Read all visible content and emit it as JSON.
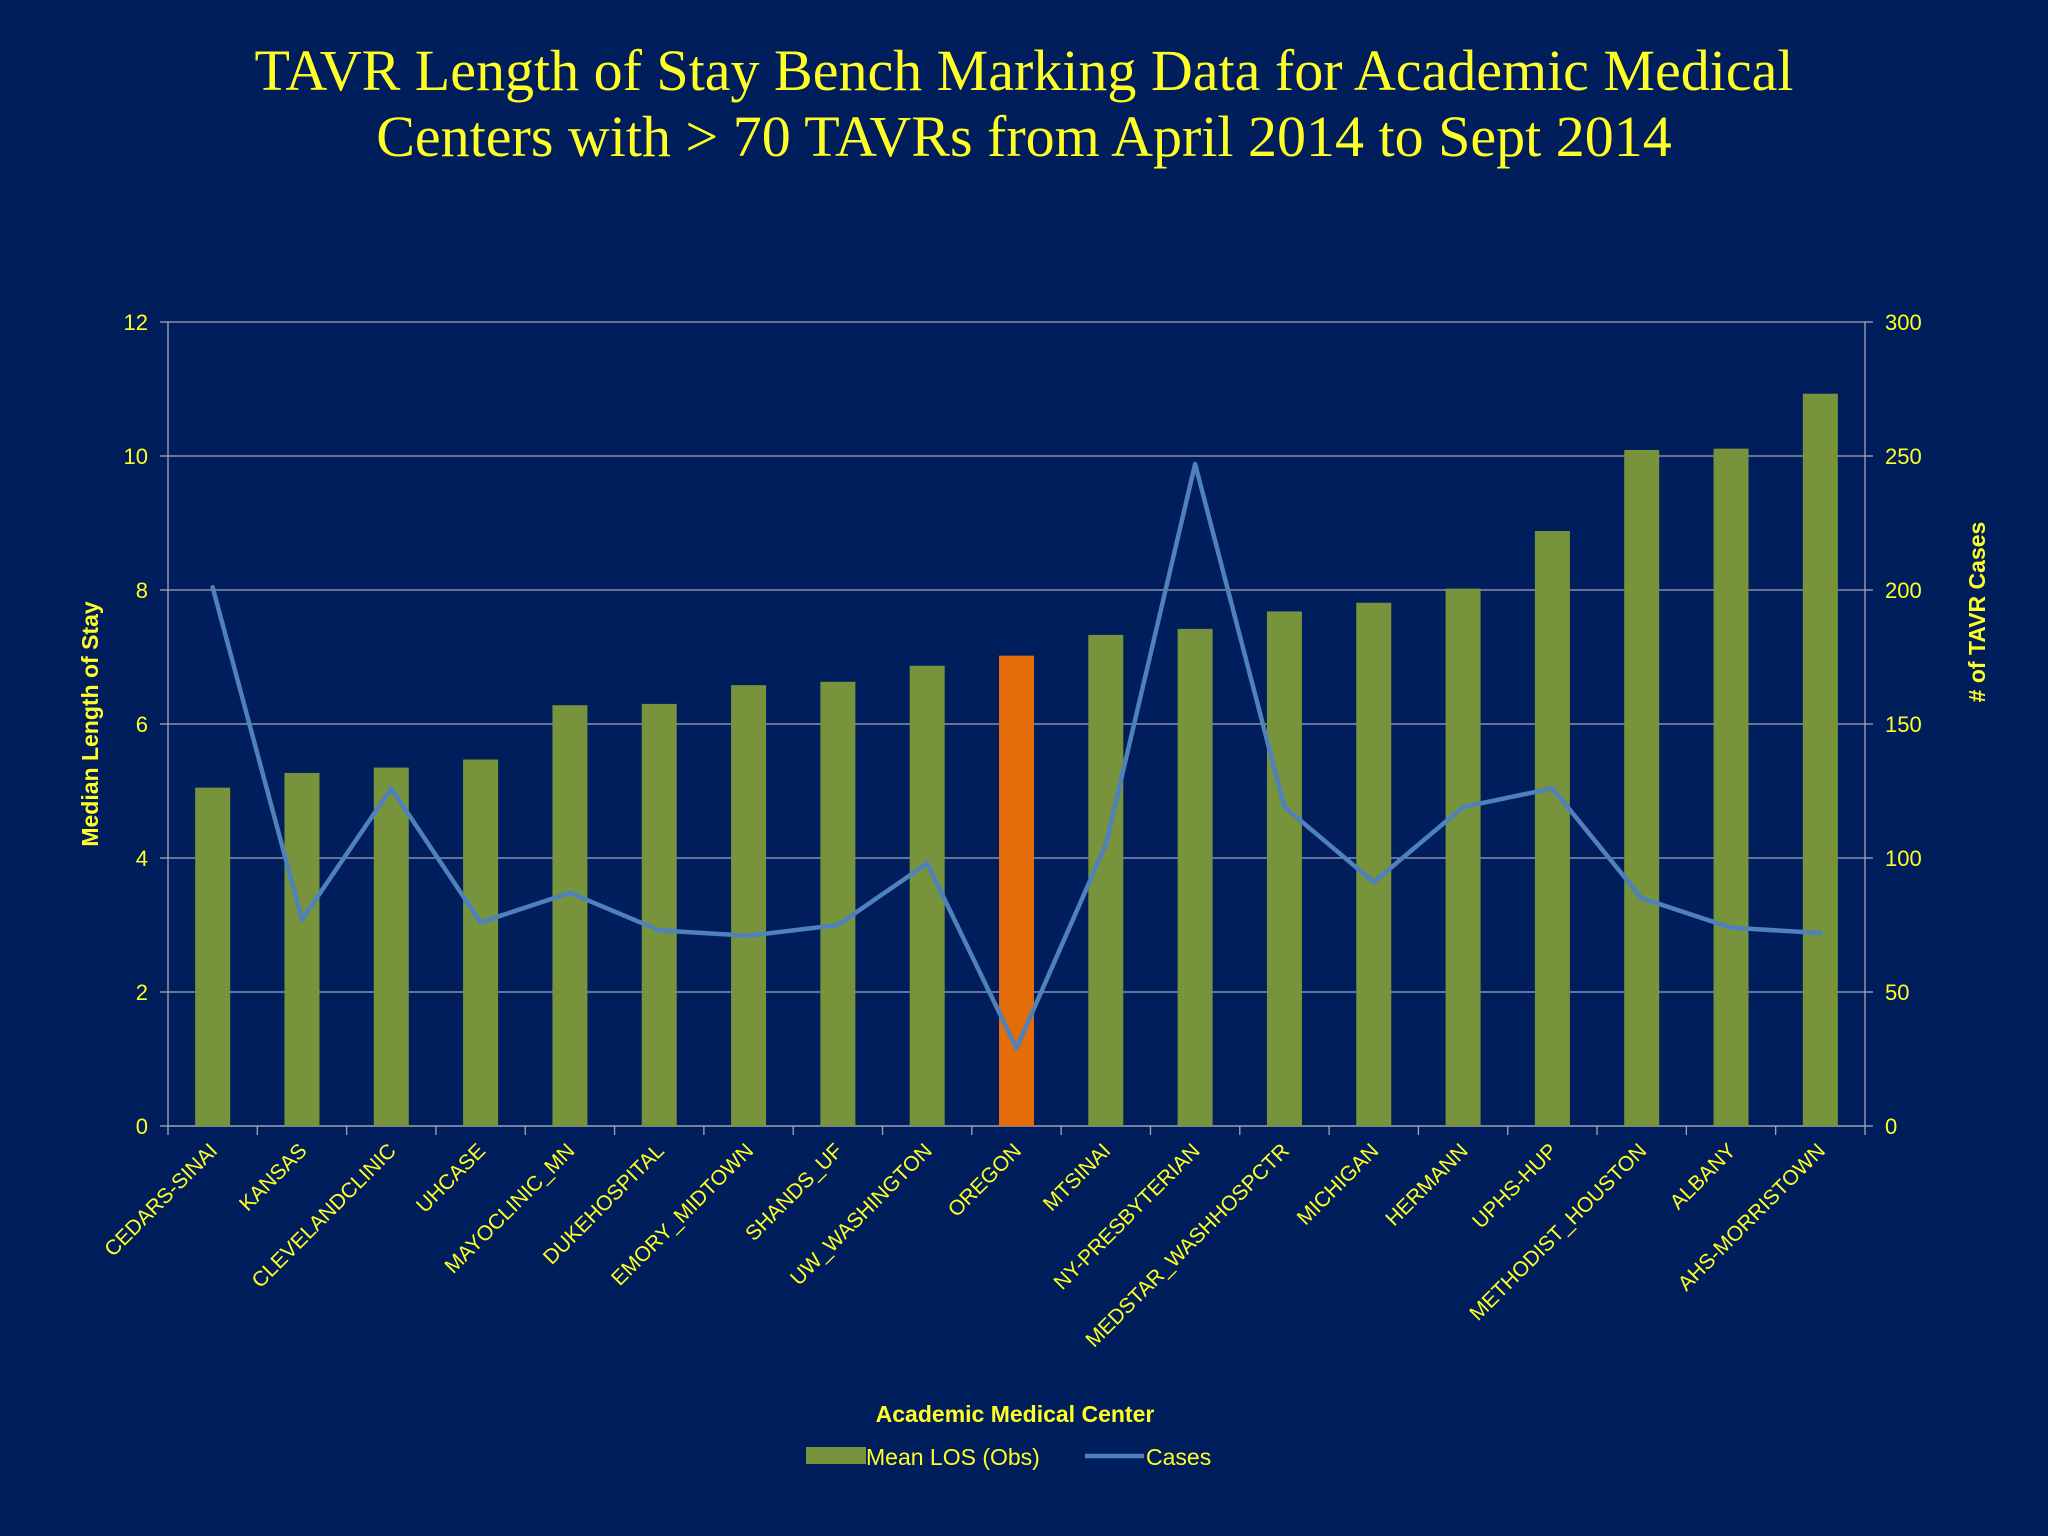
{
  "slide": {
    "title_line1": "TAVR Length of Stay Bench Marking Data for Academic Medical",
    "title_line2": "Centers with > 70 TAVRs from April 2014 to Sept 2014"
  },
  "colors": {
    "background": "#001d5c",
    "text": "#ffff26",
    "bar": "#77933c",
    "bar_highlight": "#e46c0a",
    "line": "#4f81bd",
    "grid": "#a6a6b8"
  },
  "chart_data": {
    "type": "bar",
    "xlabel": "Academic Medical Center",
    "ylabel": "Median Length of Stay",
    "y2label": "# of TAVR Cases",
    "ylim": [
      0,
      12
    ],
    "y2lim": [
      0,
      300
    ],
    "yticks": [
      0,
      2,
      4,
      6,
      8,
      10,
      12
    ],
    "y2ticks": [
      0,
      50,
      100,
      150,
      200,
      250,
      300
    ],
    "grid": true,
    "legend_position": "bottom",
    "highlight_category": "OREGON",
    "categories": [
      "CEDARS-SINAI",
      "KANSAS",
      "CLEVELANDCLINIC",
      "UHCASE",
      "MAYOCLINIC_MN",
      "DUKEHOSPITAL",
      "EMORY_MIDTOWN",
      "SHANDS_UF",
      "UW_WASHINGTON",
      "OREGON",
      "MTSINAI",
      "NY-PRESBYTERIAN",
      "MEDSTAR_WASHHOSPCTR",
      "MICHIGAN",
      "HERMANN",
      "UPHS-HUP",
      "METHODIST_HOUSTON",
      "ALBANY",
      "AHS-MORRISTOWN"
    ],
    "series": [
      {
        "name": "Mean LOS (Obs)",
        "kind": "bar",
        "axis": "left",
        "values": [
          5.05,
          5.27,
          5.35,
          5.47,
          6.28,
          6.3,
          6.58,
          6.63,
          6.87,
          7.02,
          7.33,
          7.42,
          7.68,
          7.81,
          8.02,
          8.88,
          10.09,
          10.11,
          10.93
        ]
      },
      {
        "name": "Cases",
        "kind": "line",
        "axis": "right",
        "values": [
          201,
          77,
          126,
          76,
          87,
          73,
          71,
          75,
          98,
          29,
          105,
          247,
          119,
          91,
          119,
          126,
          85,
          74,
          72
        ]
      }
    ]
  }
}
